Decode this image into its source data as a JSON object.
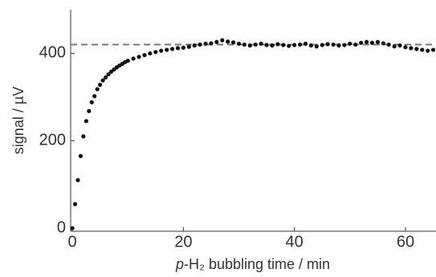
{
  "chart_data": {
    "type": "scatter",
    "xlabel": [
      "p",
      "-H₂ bubbling time / min"
    ],
    "ylabel": "signal / µV",
    "x": [
      0,
      0.5,
      1,
      1.5,
      2,
      2.5,
      3,
      3.5,
      4,
      4.5,
      5,
      5.5,
      6,
      6.5,
      7,
      7.5,
      8,
      8.5,
      9,
      9.5,
      10,
      11,
      12,
      13,
      14,
      15,
      16,
      17,
      18,
      19,
      20,
      21,
      22,
      23,
      24,
      25,
      26,
      27,
      28,
      29,
      30,
      31,
      32,
      33,
      34,
      35,
      36,
      37,
      38,
      39,
      40,
      41,
      42,
      43,
      44,
      45,
      46,
      47,
      48,
      49,
      50,
      51,
      52,
      53,
      54,
      55,
      56,
      57,
      58,
      59,
      60,
      61,
      62,
      63,
      64,
      65
    ],
    "values": [
      0,
      55,
      110,
      165,
      210,
      245,
      268,
      288,
      302,
      318,
      328,
      338,
      345,
      352,
      358,
      363,
      368,
      372,
      376,
      380,
      383,
      388,
      392,
      396,
      400,
      403,
      406,
      408,
      410,
      412,
      413,
      415,
      418,
      420,
      422,
      423,
      426,
      430,
      427,
      425,
      422,
      420,
      418,
      420,
      422,
      419,
      418,
      421,
      419,
      417,
      419,
      420,
      422,
      418,
      416,
      419,
      421,
      420,
      418,
      419,
      422,
      420,
      424,
      426,
      424,
      426,
      423,
      420,
      416,
      418,
      414,
      412,
      410,
      408,
      406,
      408
    ],
    "color": "#111111",
    "reference_line": 420,
    "reference_color": "#777777",
    "xlim": [
      -0.3,
      65.5
    ],
    "xticks": [
      0,
      20,
      40,
      60
    ],
    "ylim": [
      -7,
      500
    ],
    "yticks": [
      0,
      200,
      400
    ]
  }
}
